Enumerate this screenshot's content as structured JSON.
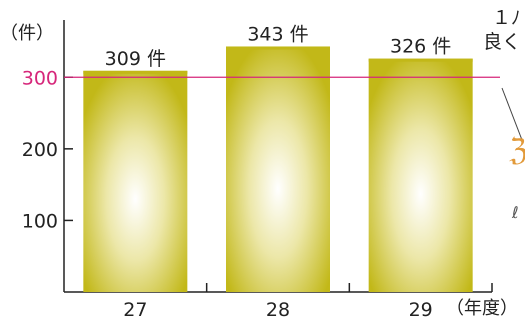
{
  "chart_data": {
    "type": "bar",
    "y_unit_label": "（件）",
    "x_unit_label": "（年度）",
    "categories": [
      "27",
      "28",
      "29"
    ],
    "values": [
      309,
      343,
      326
    ],
    "value_labels": [
      "309 件",
      "343 件",
      "326 件"
    ],
    "y_ticks": [
      "100",
      "200",
      "300"
    ],
    "ylim": [
      0,
      380
    ],
    "grid": false,
    "reference_line": {
      "value": 300,
      "label": "300",
      "color": "#d6267a"
    },
    "bar_color": "#c2b818"
  },
  "side_text": [
    "１ﾉ",
    "良く"
  ]
}
